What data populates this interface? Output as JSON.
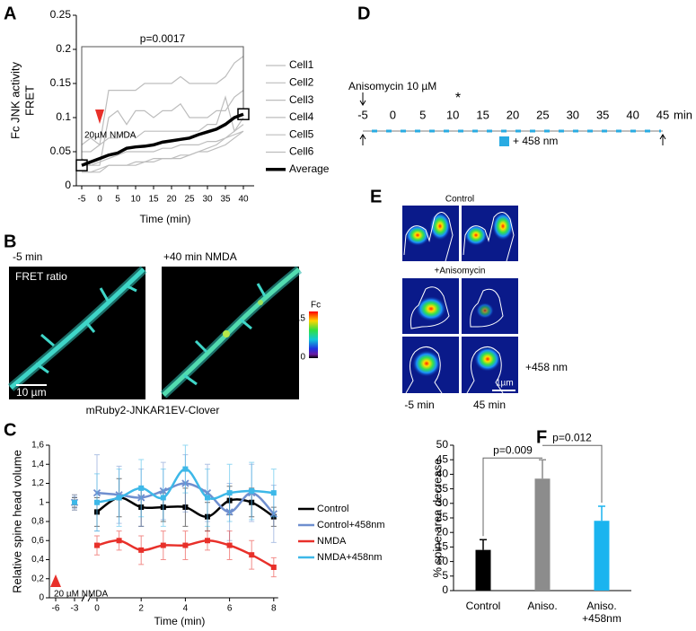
{
  "chart_data": [
    {
      "panel": "A",
      "type": "line",
      "xlabel": "Time (min)",
      "ylabel": [
        "Fc JNK activity",
        "FRET"
      ],
      "x": [
        -5,
        -2.5,
        0,
        2.5,
        5,
        7.5,
        10,
        12.5,
        15,
        17.5,
        20,
        22.5,
        25,
        27.5,
        30,
        32.5,
        35,
        37.5,
        40
      ],
      "xlim": [
        -6.5,
        43
      ],
      "xticks": [
        -5,
        0,
        5,
        10,
        15,
        20,
        25,
        30,
        35,
        40
      ],
      "ylim": [
        0,
        0.25
      ],
      "yticks": [
        0,
        0.05,
        0.1,
        0.15,
        0.2,
        0.25
      ],
      "series": [
        {
          "name": "Cell1",
          "color": "#bdbdbd",
          "values": [
            0.05,
            0.05,
            0.06,
            0.14,
            0.14,
            0.14,
            0.14,
            0.15,
            0.15,
            0.15,
            0.15,
            0.16,
            0.15,
            0.15,
            0.15,
            0.15,
            0.16,
            0.18,
            0.19
          ]
        },
        {
          "name": "Cell2",
          "color": "#bdbdbd",
          "values": [
            0.04,
            0.03,
            0.03,
            0.1,
            0.11,
            0.09,
            0.11,
            0.11,
            0.1,
            0.11,
            0.11,
            0.12,
            0.1,
            0.1,
            0.1,
            0.11,
            0.11,
            0.13,
            0.14
          ]
        },
        {
          "name": "Cell3",
          "color": "#bdbdbd",
          "values": [
            0.06,
            0.07,
            0.06,
            0.07,
            0.07,
            0.08,
            0.07,
            0.08,
            0.08,
            0.08,
            0.08,
            0.08,
            0.08,
            0.08,
            0.09,
            0.09,
            0.13,
            0.08,
            0.1
          ]
        },
        {
          "name": "Cell4",
          "color": "#bdbdbd",
          "values": [
            0.02,
            0.02,
            0.02,
            0.03,
            0.03,
            0.03,
            0.035,
            0.035,
            0.04,
            0.04,
            0.04,
            0.045,
            0.045,
            0.05,
            0.055,
            0.06,
            0.07,
            0.08,
            0.09
          ]
        },
        {
          "name": "Cell5",
          "color": "#bdbdbd",
          "values": [
            0.02,
            0.02,
            0.025,
            0.03,
            0.03,
            0.03,
            0.03,
            0.035,
            0.035,
            0.04,
            0.04,
            0.04,
            0.045,
            0.05,
            0.05,
            0.055,
            0.06,
            0.07,
            0.08
          ]
        },
        {
          "name": "Cell6",
          "color": "#bdbdbd",
          "values": [
            0.03,
            0.03,
            0.035,
            0.04,
            0.045,
            0.05,
            0.05,
            0.05,
            0.05,
            0.055,
            0.055,
            0.06,
            0.06,
            0.06,
            0.065,
            0.065,
            0.07,
            0.075,
            0.08
          ]
        },
        {
          "name": "Average",
          "color": "#000000",
          "values": [
            0.03,
            0.035,
            0.04,
            0.045,
            0.048,
            0.055,
            0.057,
            0.058,
            0.06,
            0.064,
            0.066,
            0.068,
            0.07,
            0.075,
            0.079,
            0.083,
            0.09,
            0.1,
            0.105
          ]
        }
      ],
      "annotations": {
        "stat": "p=0.0017",
        "stimulus": "20µM NMDA"
      }
    },
    {
      "panel": "C",
      "type": "line",
      "xlabel": "Time (min)",
      "ylabel": "Relative spine head volume",
      "x": [
        0,
        1,
        2,
        3,
        4,
        5,
        6,
        7,
        8
      ],
      "baseline_x": -3,
      "xlim": [
        -7,
        8.2
      ],
      "xticks": [
        -6,
        -3,
        0,
        2,
        4,
        6,
        8
      ],
      "ylim": [
        0,
        1.6
      ],
      "yticks": [
        0,
        {
          "value": 0.2,
          "label": "0,2"
        },
        {
          "value": 0.4,
          "label": "0,4"
        },
        {
          "value": 0.6,
          "label": "0,6"
        },
        {
          "value": 0.8,
          "label": "0,8"
        },
        1,
        {
          "value": 1.2,
          "label": "1,2"
        },
        {
          "value": 1.4,
          "label": "1,4"
        },
        {
          "value": 1.6,
          "label": "1,6"
        }
      ],
      "series": [
        {
          "name": "Control",
          "color": "#000000",
          "marker": "square",
          "values": [
            0.9,
            1.05,
            0.95,
            0.95,
            0.95,
            0.85,
            1.02,
            1.0,
            0.85
          ],
          "errors": [
            0.15,
            0.2,
            0.2,
            0.15,
            0.2,
            0.15,
            0.15,
            0.15,
            0.1
          ],
          "baseline": 1.0,
          "baseline_error": 0.05
        },
        {
          "name": "Control+458nm",
          "color": "#6f8fcf",
          "marker": "x",
          "values": [
            1.1,
            1.08,
            1.05,
            1.12,
            1.2,
            1.1,
            0.9,
            1.1,
            0.88
          ],
          "errors": [
            0.4,
            0.3,
            0.3,
            0.3,
            0.3,
            0.3,
            0.3,
            0.3,
            0.3
          ],
          "baseline": 1.0,
          "baseline_error": 0.06
        },
        {
          "name": "NMDA",
          "color": "#e8302a",
          "marker": "square",
          "values": [
            0.55,
            0.6,
            0.5,
            0.55,
            0.55,
            0.6,
            0.55,
            0.45,
            0.32
          ],
          "errors": [
            0.1,
            0.1,
            0.15,
            0.15,
            0.15,
            0.1,
            0.15,
            0.15,
            0.1
          ],
          "baseline": 1.0,
          "baseline_error": 0.08
        },
        {
          "name": "NMDA+458nm",
          "color": "#3db8e8",
          "marker": "square",
          "values": [
            1.0,
            1.05,
            1.15,
            1.05,
            1.35,
            1.05,
            1.1,
            1.12,
            1.1
          ],
          "errors": [
            0.3,
            0.3,
            0.3,
            0.3,
            0.25,
            0.3,
            0.3,
            0.3,
            0.25
          ],
          "baseline": 1.0,
          "baseline_error": 0.08
        }
      ],
      "annotations": {
        "stimulus": "20 µM NMDA"
      }
    },
    {
      "panel": "F",
      "type": "bar",
      "ylabel": "% spine area decrease",
      "categories": [
        [
          "Control"
        ],
        [
          "Aniso."
        ],
        [
          "Aniso.",
          "+458nm"
        ]
      ],
      "values": [
        14,
        38.5,
        24
      ],
      "errors": [
        3.5,
        6.5,
        5
      ],
      "colors": [
        "#000000",
        "#8c8c8c",
        "#1ab4ef"
      ],
      "ylim": [
        0,
        50
      ],
      "yticks": [
        0,
        5,
        10,
        15,
        20,
        25,
        30,
        35,
        40,
        45,
        50
      ],
      "annotations": [
        "p=0.009",
        "p=0.012"
      ]
    }
  ],
  "panel_b": {
    "panel": "B",
    "before": "-5 min",
    "after": "+40 min NMDA",
    "image_label": "FRET ratio",
    "scale_bar": "10 µm",
    "caption": "mRuby2-JNKAR1EV-Clover",
    "colorbar": {
      "title": "Fc",
      "max": "0.5",
      "min": "0"
    }
  },
  "panel_d": {
    "panel": "D",
    "treatment": "Anisomycin 10 µM",
    "marker": "*",
    "ticks": [
      -5,
      0,
      5,
      10,
      15,
      20,
      25,
      30,
      35,
      40,
      45
    ],
    "unit": "min",
    "light": "+ 458 nm"
  },
  "panel_e": {
    "panel": "E",
    "conditions": [
      "Control",
      "+Anisomycin",
      "+458 nm"
    ],
    "scale_bar": "1µm",
    "times": [
      "-5 min",
      "45 min"
    ]
  }
}
